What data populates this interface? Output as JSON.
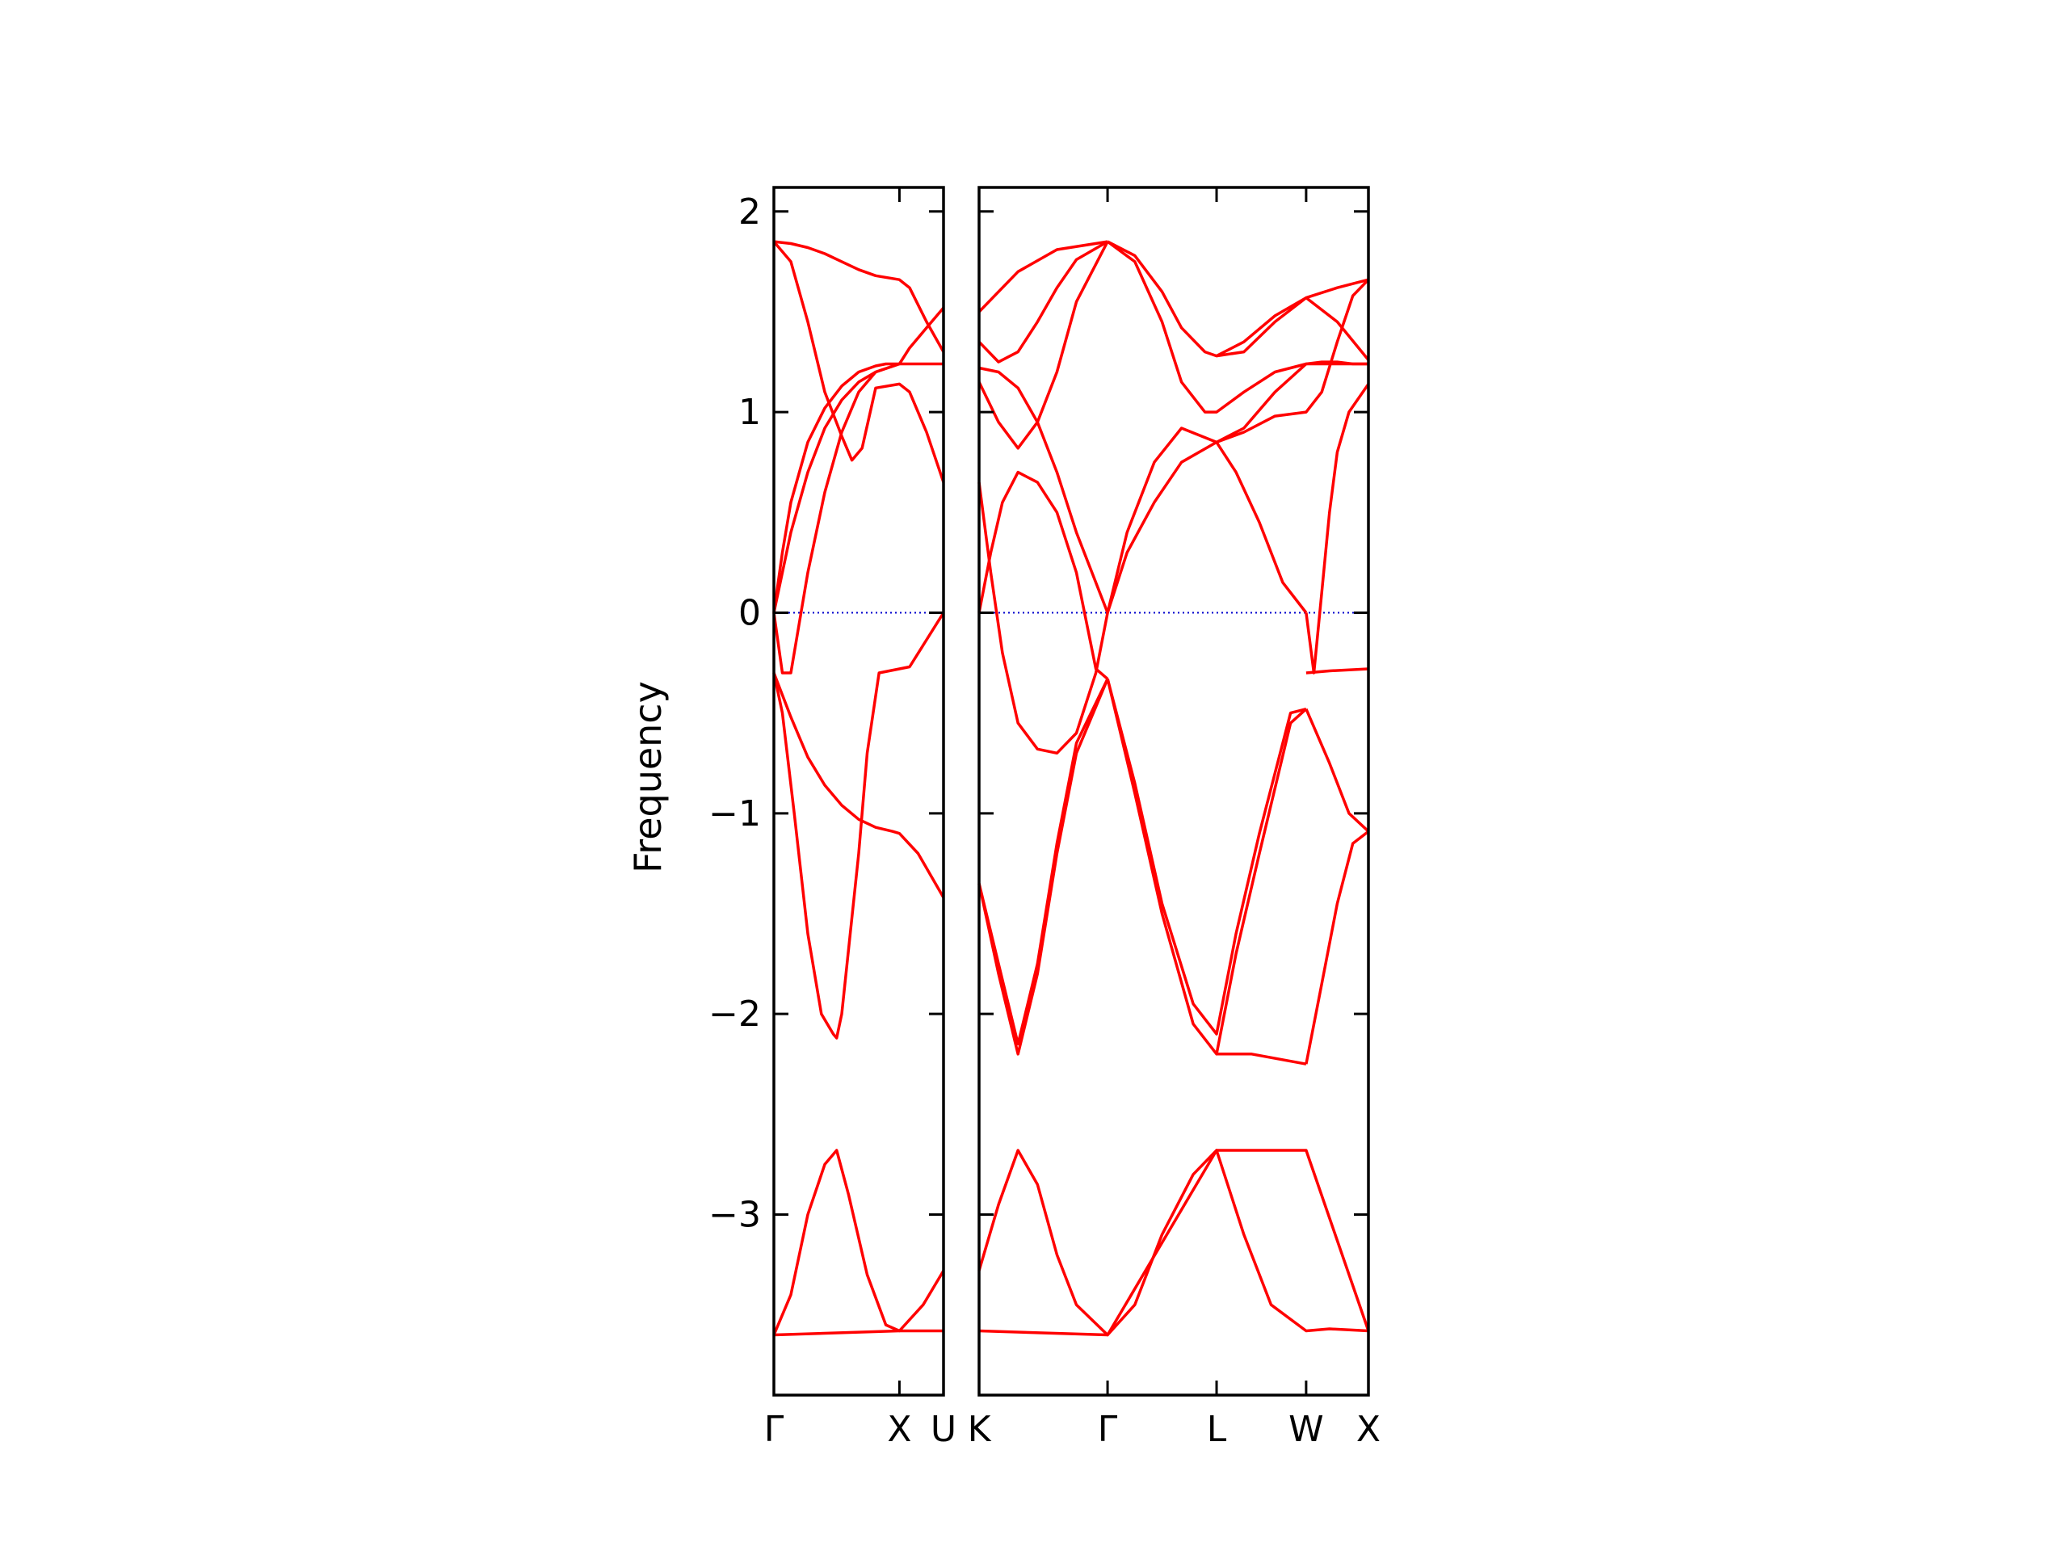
{
  "chart_data": {
    "type": "line",
    "title": "",
    "xlabel": "",
    "ylabel": "Frequency",
    "ylim": [
      -3.9,
      2.12
    ],
    "yticks": [
      -3,
      -2,
      -1,
      0,
      1,
      2
    ],
    "ytick_labels": [
      "−3",
      "−2",
      "−1",
      "0",
      "1",
      "2"
    ],
    "grid": false,
    "line_color": "#ff0000",
    "zero_line_color": "#0000cc",
    "panels": [
      {
        "name": "gamma-x-u",
        "xlim": [
          0,
          1.0
        ],
        "xticks": [
          0,
          0.74,
          1.0
        ],
        "xtick_labels": [
          "Γ",
          "X",
          "U"
        ],
        "bands": [
          {
            "x": [
              0,
              0.37,
              0.74,
              1.0
            ],
            "y": [
              -3.6,
              -3.59,
              -3.58,
              -3.58
            ]
          },
          {
            "x": [
              0,
              0.1,
              0.2,
              0.3,
              0.37,
              0.44,
              0.55,
              0.66,
              0.74,
              0.88,
              1.0
            ],
            "y": [
              -3.6,
              -3.4,
              -3.0,
              -2.75,
              -2.68,
              -2.9,
              -3.3,
              -3.55,
              -3.58,
              -3.45,
              -3.28
            ]
          },
          {
            "x": [
              0,
              0.05,
              0.12,
              0.2,
              0.28,
              0.35,
              0.37,
              0.4,
              0.45,
              0.5,
              0.55,
              0.62,
              0.74,
              0.8,
              1.0
            ],
            "y": [
              -0.3,
              -0.5,
              -1.0,
              -1.6,
              -2.0,
              -2.1,
              -2.12,
              -2.0,
              -1.6,
              -1.2,
              -0.7,
              -0.3,
              -0.28,
              -0.27,
              0.0
            ]
          },
          {
            "x": [
              0,
              0.1,
              0.2,
              0.3,
              0.4,
              0.5,
              0.6,
              0.7,
              0.74,
              0.85,
              1.0
            ],
            "y": [
              -0.3,
              -0.52,
              -0.72,
              -0.86,
              -0.96,
              -1.03,
              -1.07,
              -1.09,
              -1.1,
              -1.2,
              -1.42
            ]
          },
          {
            "x": [
              0,
              0.05,
              0.1,
              0.2,
              0.3,
              0.4,
              0.5,
              0.6,
              0.66,
              0.74
            ],
            "y": [
              0.0,
              0.3,
              0.55,
              0.85,
              1.02,
              1.13,
              1.2,
              1.23,
              1.24,
              1.24
            ]
          },
          {
            "x": [
              0,
              0.05,
              0.1,
              0.2,
              0.3,
              0.4,
              0.5,
              0.6,
              0.74,
              0.85,
              1.0
            ],
            "y": [
              0.0,
              -0.3,
              -0.3,
              0.2,
              0.6,
              0.9,
              1.1,
              1.2,
              1.24,
              1.24,
              1.24
            ]
          },
          {
            "x": [
              0,
              0.1,
              0.2,
              0.3,
              0.4,
              0.5,
              0.6,
              0.74,
              0.8,
              0.9,
              1.0
            ],
            "y": [
              0.0,
              0.4,
              0.7,
              0.92,
              1.06,
              1.15,
              1.2,
              1.24,
              1.32,
              1.42,
              1.52
            ]
          },
          {
            "x": [
              0,
              0.1,
              0.2,
              0.3,
              0.4,
              0.46,
              0.52,
              0.6,
              0.74,
              0.8,
              0.9,
              1.0
            ],
            "y": [
              1.85,
              1.75,
              1.45,
              1.1,
              0.88,
              0.76,
              0.82,
              1.12,
              1.14,
              1.1,
              0.9,
              0.65
            ]
          },
          {
            "x": [
              0,
              0.1,
              0.2,
              0.3,
              0.4,
              0.5,
              0.6,
              0.74,
              0.8,
              0.9,
              1.0
            ],
            "y": [
              1.85,
              1.84,
              1.82,
              1.79,
              1.75,
              1.71,
              1.68,
              1.66,
              1.62,
              1.45,
              1.3
            ]
          }
        ]
      },
      {
        "name": "k-gamma-l-w-x",
        "xlim": [
          0,
          1.0
        ],
        "xticks": [
          0,
          0.33,
          0.61,
          0.84,
          1.0
        ],
        "xtick_labels": [
          "K",
          "Γ",
          "L",
          "W",
          "X"
        ],
        "bands": [
          {
            "x": [
              0,
              0.33,
              0.61,
              0.84,
              1.0
            ],
            "y": [
              -3.58,
              -3.6,
              -2.68,
              -2.68,
              -3.58
            ]
          },
          {
            "x": [
              0,
              0.05,
              0.1,
              0.15,
              0.2,
              0.25,
              0.33,
              0.4,
              0.47,
              0.55,
              0.61,
              0.68,
              0.75,
              0.84,
              0.9,
              1.0
            ],
            "y": [
              -3.28,
              -2.95,
              -2.68,
              -2.85,
              -3.2,
              -3.45,
              -3.6,
              -3.45,
              -3.1,
              -2.8,
              -2.68,
              -3.1,
              -3.45,
              -3.58,
              -3.57,
              -3.58
            ]
          },
          {
            "x": [
              0,
              0.05,
              0.1,
              0.15,
              0.2,
              0.25,
              0.33
            ],
            "y": [
              -1.35,
              -1.8,
              -2.2,
              -1.8,
              -1.2,
              -0.7,
              -0.33
            ]
          },
          {
            "x": [
              0,
              0.05,
              0.1,
              0.15,
              0.2,
              0.25,
              0.33
            ],
            "y": [
              -1.35,
              -1.75,
              -2.15,
              -1.75,
              -1.15,
              -0.65,
              -0.33
            ]
          },
          {
            "x": [
              0.33,
              0.4,
              0.47,
              0.55,
              0.61,
              0.66,
              0.72,
              0.8,
              0.84
            ],
            "y": [
              -0.33,
              -0.9,
              -1.5,
              -2.05,
              -2.2,
              -1.7,
              -1.2,
              -0.55,
              -0.48
            ]
          },
          {
            "x": [
              0.33,
              0.4,
              0.47,
              0.55,
              0.61,
              0.66,
              0.72,
              0.8,
              0.84
            ],
            "y": [
              -0.33,
              -0.85,
              -1.45,
              -1.95,
              -2.1,
              -1.6,
              -1.1,
              -0.5,
              -0.48
            ]
          },
          {
            "x": [
              0.61,
              0.7,
              0.84
            ],
            "y": [
              -2.2,
              -2.2,
              -2.25
            ]
          },
          {
            "x": [
              0.84,
              0.9,
              0.95,
              1.0
            ],
            "y": [
              -0.48,
              -0.75,
              -1.0,
              -1.09
            ]
          },
          {
            "x": [
              0.84,
              0.88,
              0.92,
              0.96,
              1.0
            ],
            "y": [
              -2.25,
              -1.85,
              -1.45,
              -1.15,
              -1.09
            ]
          },
          {
            "x": [
              0,
              0.03,
              0.06,
              0.1,
              0.15,
              0.2,
              0.25,
              0.3,
              0.33
            ],
            "y": [
              0.65,
              0.2,
              -0.2,
              -0.55,
              -0.68,
              -0.7,
              -0.6,
              -0.3,
              0.0
            ]
          },
          {
            "x": [
              0,
              0.03,
              0.06,
              0.1,
              0.15,
              0.2,
              0.25,
              0.3,
              0.33
            ],
            "y": [
              0.0,
              0.3,
              0.55,
              0.7,
              0.65,
              0.5,
              0.2,
              -0.28,
              -0.33
            ]
          },
          {
            "x": [
              0,
              0.05,
              0.1,
              0.15,
              0.2,
              0.25,
              0.33
            ],
            "y": [
              1.22,
              1.2,
              1.12,
              0.95,
              0.7,
              0.4,
              0.0
            ]
          },
          {
            "x": [
              0,
              0.05,
              0.1,
              0.15,
              0.2,
              0.25,
              0.33
            ],
            "y": [
              1.15,
              0.95,
              0.82,
              0.95,
              1.2,
              1.55,
              1.85
            ]
          },
          {
            "x": [
              0,
              0.05,
              0.1,
              0.15,
              0.2,
              0.25,
              0.33
            ],
            "y": [
              1.35,
              1.25,
              1.3,
              1.45,
              1.62,
              1.76,
              1.85
            ]
          },
          {
            "x": [
              0,
              0.1,
              0.2,
              0.33
            ],
            "y": [
              1.5,
              1.7,
              1.81,
              1.85
            ]
          },
          {
            "x": [
              0.33,
              0.38,
              0.45,
              0.52,
              0.61,
              0.66,
              0.72,
              0.78,
              0.84
            ],
            "y": [
              0.0,
              0.4,
              0.75,
              0.92,
              0.85,
              0.7,
              0.45,
              0.15,
              0.0
            ]
          },
          {
            "x": [
              0.33,
              0.38,
              0.45,
              0.52,
              0.61
            ],
            "y": [
              0.0,
              0.3,
              0.55,
              0.75,
              0.85
            ]
          },
          {
            "x": [
              0.33,
              0.4,
              0.47,
              0.52,
              0.58,
              0.61,
              0.68,
              0.76,
              0.84,
              0.92,
              1.0
            ],
            "y": [
              1.85,
              1.75,
              1.45,
              1.15,
              1.0,
              1.0,
              1.1,
              1.2,
              1.24,
              1.24,
              1.24
            ]
          },
          {
            "x": [
              0.33,
              0.4,
              0.47,
              0.52,
              0.58,
              0.61,
              0.68,
              0.76,
              0.84,
              0.92,
              1.0
            ],
            "y": [
              1.85,
              1.78,
              1.6,
              1.42,
              1.3,
              1.28,
              1.35,
              1.48,
              1.57,
              1.45,
              1.26
            ]
          },
          {
            "x": [
              0.61,
              0.68,
              0.76,
              0.84,
              0.92,
              1.0
            ],
            "y": [
              1.28,
              1.3,
              1.45,
              1.57,
              1.62,
              1.66
            ]
          },
          {
            "x": [
              0.61,
              0.68,
              0.76,
              0.84,
              0.88,
              0.92,
              0.96,
              1.0
            ],
            "y": [
              0.85,
              0.92,
              1.1,
              1.24,
              1.25,
              1.25,
              1.24,
              1.24
            ]
          },
          {
            "x": [
              0.61,
              0.68,
              0.76,
              0.84,
              0.88,
              0.92,
              0.96,
              1.0
            ],
            "y": [
              0.85,
              0.9,
              0.98,
              1.0,
              1.1,
              1.35,
              1.58,
              1.66
            ]
          },
          {
            "x": [
              0.84,
              0.86,
              0.88,
              0.9,
              0.92,
              0.95,
              1.0
            ],
            "y": [
              0.0,
              -0.3,
              0.1,
              0.5,
              0.8,
              1.0,
              1.14
            ]
          },
          {
            "x": [
              0.84,
              0.9,
              1.0
            ],
            "y": [
              -0.3,
              -0.29,
              -0.28
            ]
          }
        ]
      }
    ]
  }
}
